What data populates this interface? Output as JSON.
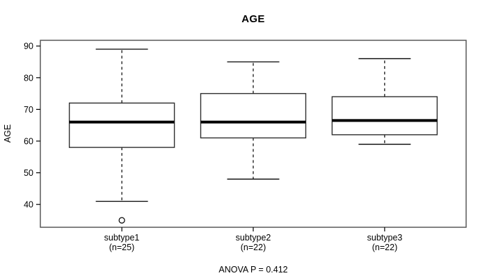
{
  "chart_data": {
    "type": "boxplot",
    "title": "AGE",
    "ylabel": "AGE",
    "xlabel": "",
    "annotation": "ANOVA P = 0.412",
    "yticks": [
      40,
      50,
      60,
      70,
      80,
      90
    ],
    "ylim": [
      32.8,
      91.8
    ],
    "grid": false,
    "legend": "none",
    "groups": [
      {
        "label": "subtype1",
        "sublabel": "(n=25)",
        "n": 25,
        "whisker_low": 41,
        "q1": 58,
        "median": 66,
        "q3": 72,
        "whisker_high": 89,
        "outliers": [
          35
        ]
      },
      {
        "label": "subtype2",
        "sublabel": "(n=22)",
        "n": 22,
        "whisker_low": 48,
        "q1": 61,
        "median": 66,
        "q3": 75,
        "whisker_high": 85,
        "outliers": []
      },
      {
        "label": "subtype3",
        "sublabel": "(n=22)",
        "n": 22,
        "whisker_low": 59,
        "q1": 62,
        "median": 66.5,
        "q3": 74,
        "whisker_high": 86,
        "outliers": []
      }
    ],
    "colors": {
      "foreground": "#000000",
      "box_fill": "#ffffff",
      "frame": "#4d4d4d",
      "background": "#ffffff"
    }
  }
}
